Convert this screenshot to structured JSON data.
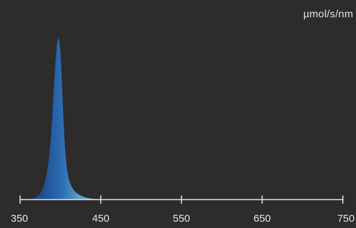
{
  "chart_data": {
    "type": "area",
    "unit_label": "µmol/s/nm",
    "xlabel": "",
    "ylabel": "",
    "xlim": [
      350,
      750
    ],
    "ylim": [
      0,
      1
    ],
    "x_ticks": [
      350,
      450,
      550,
      650,
      750
    ],
    "x_tick_labels": [
      "350",
      "450",
      "550",
      "650",
      "750"
    ],
    "grid": false,
    "legend": "none",
    "colors": {
      "background": "#2d2b2c",
      "axis": "#e6e6e6",
      "text": "#e6e6e6",
      "fill_dark": "#1e4c8c",
      "fill_mid": "#2d6db4",
      "fill_light": "#5aa6c6"
    },
    "series": [
      {
        "x": [
          350,
          360,
          365,
          370,
          375,
          380,
          383,
          386,
          388,
          390,
          392,
          394,
          396,
          398,
          400,
          402,
          404,
          406,
          408,
          410,
          413,
          416,
          420,
          425,
          430,
          435,
          440,
          445,
          450,
          460,
          750
        ],
        "values": [
          0.0,
          0.0,
          0.005,
          0.015,
          0.035,
          0.09,
          0.16,
          0.26,
          0.37,
          0.52,
          0.7,
          0.86,
          0.97,
          1.0,
          0.92,
          0.7,
          0.46,
          0.29,
          0.19,
          0.13,
          0.09,
          0.06,
          0.04,
          0.025,
          0.015,
          0.009,
          0.005,
          0.003,
          0.0015,
          0.0,
          0.0
        ]
      }
    ]
  }
}
